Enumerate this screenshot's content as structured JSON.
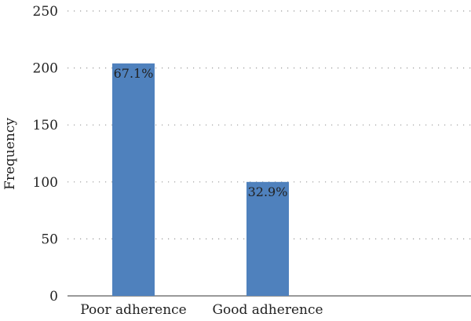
{
  "chart_data": {
    "type": "bar",
    "categories": [
      "Poor adherence",
      "Good adherence"
    ],
    "values": [
      204,
      100
    ],
    "data_labels": [
      "67.1%",
      "32.9%"
    ],
    "title": "",
    "xlabel": "",
    "ylabel": "Frequency",
    "ylim": [
      0,
      250
    ],
    "yticks": [
      "0",
      "50",
      "100",
      "150",
      "200",
      "250"
    ],
    "grid": true,
    "legend": "none",
    "bar_color": "#4f81bd"
  }
}
